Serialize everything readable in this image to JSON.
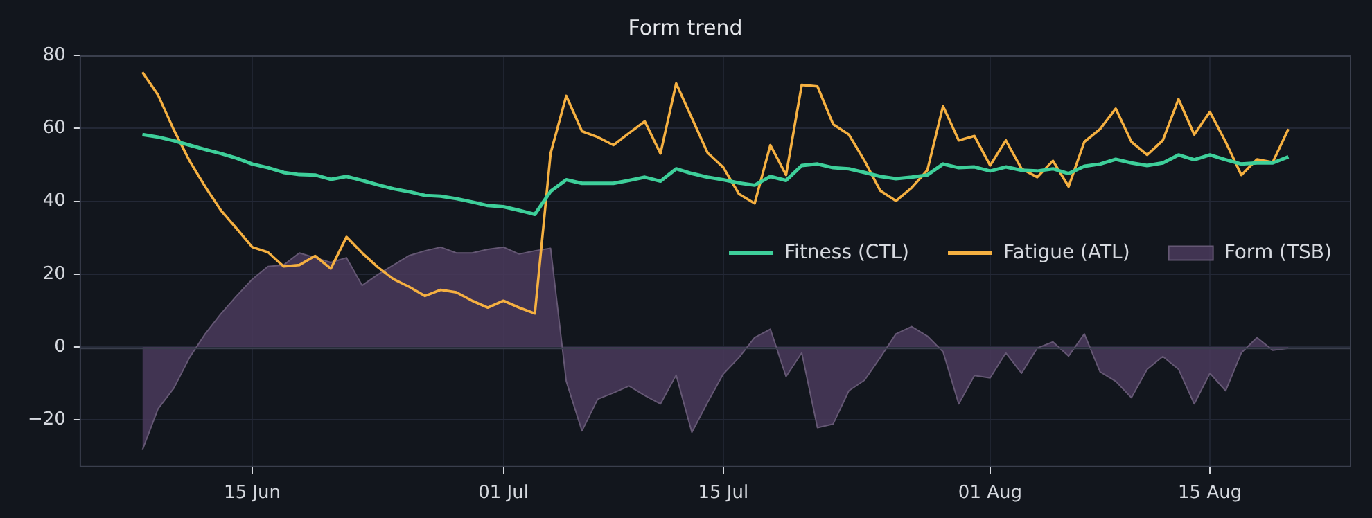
{
  "chart_data": {
    "type": "line",
    "title": "Form trend",
    "x": [
      "--06-08",
      "--06-09",
      "--06-10",
      "--06-11",
      "--06-12",
      "--06-13",
      "--06-14",
      "--06-15",
      "--06-16",
      "--06-17",
      "--06-18",
      "--06-19",
      "--06-20",
      "--06-21",
      "--06-22",
      "--06-23",
      "--06-24",
      "--06-25",
      "--06-26",
      "--06-27",
      "--06-28",
      "--06-29",
      "--06-30",
      "--07-01",
      "--07-02",
      "--07-03",
      "--07-04",
      "--07-05",
      "--07-06",
      "--07-07",
      "--07-08",
      "--07-09",
      "--07-10",
      "--07-11",
      "--07-12",
      "--07-13",
      "--07-14",
      "--07-15",
      "--07-16",
      "--07-17",
      "--07-18",
      "--07-19",
      "--07-20",
      "--07-21",
      "--07-22",
      "--07-23",
      "--07-24",
      "--07-25",
      "--07-26",
      "--07-27",
      "--07-28",
      "--07-29",
      "--07-30",
      "--07-31",
      "--08-01",
      "--08-02",
      "--08-03",
      "--08-04",
      "--08-05",
      "--08-06",
      "--08-07",
      "--08-08",
      "--08-09",
      "--08-10",
      "--08-11",
      "--08-12",
      "--08-13",
      "--08-14",
      "--08-15",
      "--08-16",
      "--08-17",
      "--08-18",
      "--08-19",
      "--08-20"
    ],
    "series": [
      {
        "name": "Fitness (CTL)",
        "color": "#3ecf9a",
        "values": [
          58.3,
          57.6,
          56.6,
          55.4,
          54.2,
          53.1,
          51.8,
          50.2,
          49.2,
          47.9,
          47.3,
          47.2,
          46.0,
          46.8,
          45.7,
          44.5,
          43.4,
          42.6,
          41.6,
          41.4,
          40.7,
          39.8,
          38.8,
          38.5,
          37.5,
          36.4,
          42.7,
          45.9,
          44.9,
          44.9,
          44.9,
          45.7,
          46.6,
          45.5,
          48.9,
          47.6,
          46.6,
          45.9,
          45.0,
          44.4,
          46.8,
          45.7,
          49.8,
          50.2,
          49.2,
          48.9,
          47.9,
          46.8,
          46.2,
          46.6,
          47.2,
          50.2,
          49.2,
          49.4,
          48.3,
          49.4,
          48.5,
          48.3,
          48.9,
          47.6,
          49.6,
          50.2,
          51.5,
          50.5,
          49.8,
          50.5,
          52.7,
          51.4,
          52.7,
          51.4,
          50.2,
          50.5,
          50.5,
          52.2
        ]
      },
      {
        "name": "Fatigue (ATL)",
        "color": "#f5b041",
        "values": [
          75.4,
          69.1,
          59.6,
          51.1,
          44.0,
          37.5,
          32.5,
          27.4,
          26.0,
          22.1,
          22.5,
          25.0,
          21.5,
          30.2,
          25.8,
          21.9,
          18.6,
          16.5,
          14.0,
          15.7,
          15.0,
          12.7,
          10.8,
          12.7,
          10.8,
          9.2,
          53.1,
          68.9,
          59.2,
          57.6,
          55.4,
          58.7,
          61.9,
          53.1,
          72.3,
          62.8,
          53.3,
          49.3,
          42.0,
          39.4,
          55.4,
          47.2,
          71.9,
          71.5,
          61.1,
          58.3,
          51.1,
          42.9,
          40.1,
          43.7,
          48.5,
          66.1,
          56.7,
          57.9,
          49.8,
          56.7,
          48.9,
          46.6,
          51.1,
          44.0,
          56.3,
          59.8,
          65.4,
          56.3,
          52.7,
          56.7,
          68.0,
          58.3,
          64.5,
          56.3,
          47.2,
          51.5,
          50.7,
          59.8
        ]
      },
      {
        "name": "Form (TSB)",
        "type": "area",
        "color": "#4a3a5c",
        "values": [
          -28.2,
          -16.9,
          -11.3,
          -2.9,
          3.6,
          9.1,
          14.0,
          18.6,
          22.1,
          22.5,
          25.8,
          24.5,
          23.2,
          24.5,
          16.9,
          19.9,
          22.5,
          25.1,
          26.4,
          27.4,
          25.8,
          25.8,
          26.8,
          27.4,
          25.5,
          26.4,
          27.1,
          -9.4,
          -23.0,
          -14.3,
          -12.6,
          -10.7,
          -13.3,
          -15.6,
          -7.7,
          -23.4,
          -15.2,
          -7.4,
          -2.9,
          2.6,
          4.9,
          -8.1,
          -1.6,
          -22.1,
          -21.1,
          -12.0,
          -9.1,
          -2.9,
          3.6,
          5.6,
          3.0,
          -1.3,
          -15.6,
          -7.8,
          -8.5,
          -1.6,
          -7.2,
          -0.3,
          1.4,
          -2.5,
          3.6,
          -6.8,
          -9.4,
          -13.9,
          -6.1,
          -2.6,
          -6.1,
          -15.6,
          -7.2,
          -12.0,
          -1.6,
          2.6,
          -0.9,
          -0.3
        ]
      }
    ],
    "xlim": [
      "--06-04",
      "--08-24"
    ],
    "xticks": [
      {
        "value": "--06-15",
        "label": "15 Jun"
      },
      {
        "value": "--07-01",
        "label": "01 Jul"
      },
      {
        "value": "--07-15",
        "label": "15 Jul"
      },
      {
        "value": "--08-01",
        "label": "01 Aug"
      },
      {
        "value": "--08-15",
        "label": "15 Aug"
      }
    ],
    "ylim": [
      -33,
      80
    ],
    "yticks": [
      -20,
      0,
      20,
      40,
      60,
      80
    ],
    "grid": true,
    "legend": "right"
  }
}
